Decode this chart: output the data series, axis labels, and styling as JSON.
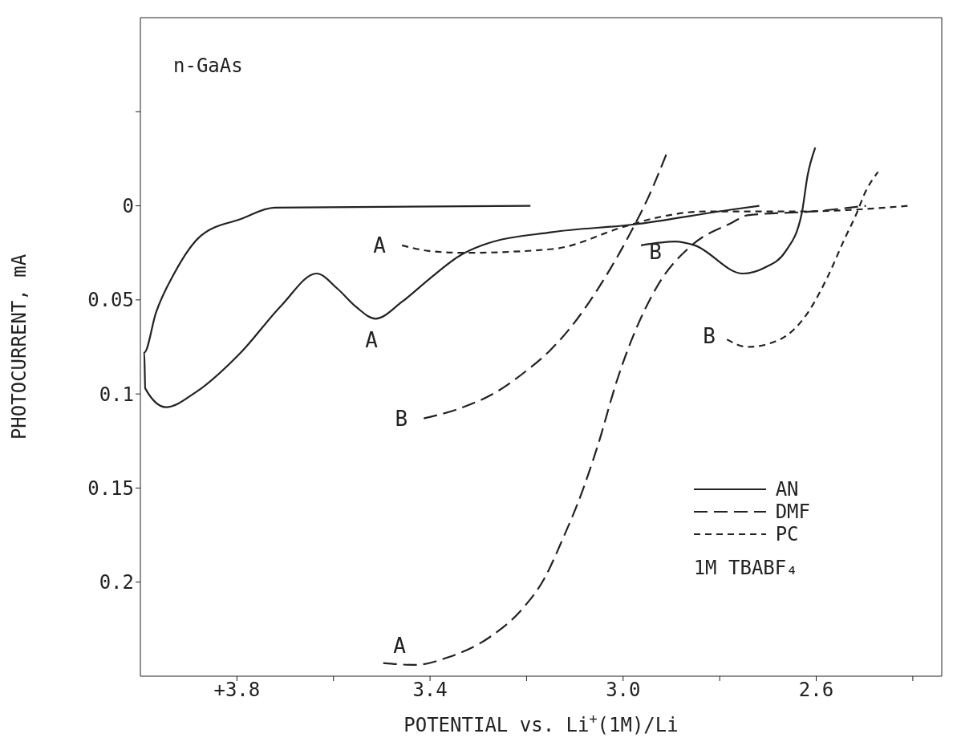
{
  "chart_data": {
    "type": "line",
    "xlabel": "POTENTIAL vs. Li$^{+}$(1M)/Li",
    "ylabel": "PHOTOCURRENT, mA",
    "xlim": [
      4.0,
      2.34
    ],
    "xticks": [
      {
        "value": 3.8,
        "label": "+3.8"
      },
      {
        "value": 3.6,
        "label": null
      },
      {
        "value": 3.4,
        "label": "3.4"
      },
      {
        "value": 3.2,
        "label": null
      },
      {
        "value": 3.0,
        "label": "3.0"
      },
      {
        "value": 2.8,
        "label": null
      },
      {
        "value": 2.6,
        "label": "2.6"
      },
      {
        "value": 2.4,
        "label": null
      }
    ],
    "ylim": [
      0.25,
      -0.1
    ],
    "yticks": [
      {
        "value": -0.05,
        "label": null
      },
      0,
      0.05,
      0.1,
      0.15,
      0.2
    ],
    "grid": false,
    "legend": "bottom right",
    "marker": "none",
    "series": [
      {
        "name": "AN",
        "color": "#222222",
        "line_style": "solid",
        "x": [
          3.192,
          3.722,
          3.792,
          3.875,
          3.93,
          3.968,
          3.992,
          3.99,
          3.947,
          3.885,
          3.792,
          3.708,
          3.635,
          3.592,
          3.552,
          3.513,
          3.458,
          3.402,
          3.335,
          3.292,
          3.147,
          2.98,
          2.775,
          2.718,
          null,
          2.963,
          2.892,
          2.852,
          2.752,
          2.708,
          2.663,
          2.63,
          2.618,
          2.602
        ],
        "values": [
          0,
          0.001,
          0.007,
          0.016,
          0.036,
          0.057,
          0.078,
          0.097,
          0.107,
          0.099,
          0.078,
          0.053,
          0.036,
          0.044,
          0.054,
          0.06,
          0.051,
          0.039,
          0.026,
          0.021,
          0.014,
          0.01,
          0.002,
          0,
          null,
          0.021,
          0.019,
          0.021,
          0.036,
          0.033,
          0.024,
          0.004,
          -0.016,
          -0.031
        ]
      },
      {
        "name": "DMF",
        "color": "#222222",
        "line_style": "dashed",
        "x": [
          3.497,
          3.43,
          3.363,
          3.275,
          3.208,
          3.163,
          3.125,
          3.085,
          3.052,
          3.013,
          2.93,
          2.858,
          2.775,
          2.742,
          2.608,
          2.497,
          null,
          3.413,
          3.342,
          3.263,
          3.202,
          3.152,
          3.113,
          3.042,
          2.98,
          2.947,
          2.908
        ],
        "values": [
          0.243,
          0.244,
          0.24,
          0.229,
          0.214,
          0.198,
          0.177,
          0.152,
          0.127,
          0.093,
          0.043,
          0.021,
          0.009,
          0.005,
          0.003,
          0,
          null,
          0.113,
          0.108,
          0.099,
          0.088,
          0.077,
          0.066,
          0.04,
          0.012,
          -0.005,
          -0.029
        ]
      },
      {
        "name": "PC",
        "color": "#222222",
        "line_style": "dotted",
        "x": [
          3.458,
          3.402,
          3.33,
          3.147,
          2.997,
          2.942,
          2.83,
          2.635,
          2.408,
          null,
          2.785,
          2.742,
          2.675,
          2.618,
          2.575,
          2.542,
          2.518,
          2.497,
          2.472
        ],
        "values": [
          0.021,
          0.024,
          0.025,
          0.023,
          0.011,
          0.007,
          0.003,
          0.003,
          0,
          null,
          0.071,
          0.075,
          0.071,
          0.057,
          0.037,
          0.018,
          0.005,
          -0.008,
          -0.018
        ]
      }
    ],
    "annotations": [
      "n-GaAs",
      "1M TBABF₄",
      {
        "text": "A",
        "x": 3.458,
        "y": 0.021
      },
      {
        "text": "A",
        "x": 3.513,
        "y": 0.06
      },
      {
        "text": "B",
        "x": 3.413,
        "y": 0.113
      },
      {
        "text": "B",
        "x": 2.963,
        "y": 0.021
      },
      {
        "text": "B",
        "x": 2.785,
        "y": 0.071
      },
      {
        "text": "A",
        "x": 3.43,
        "y": 0.244
      }
    ]
  }
}
